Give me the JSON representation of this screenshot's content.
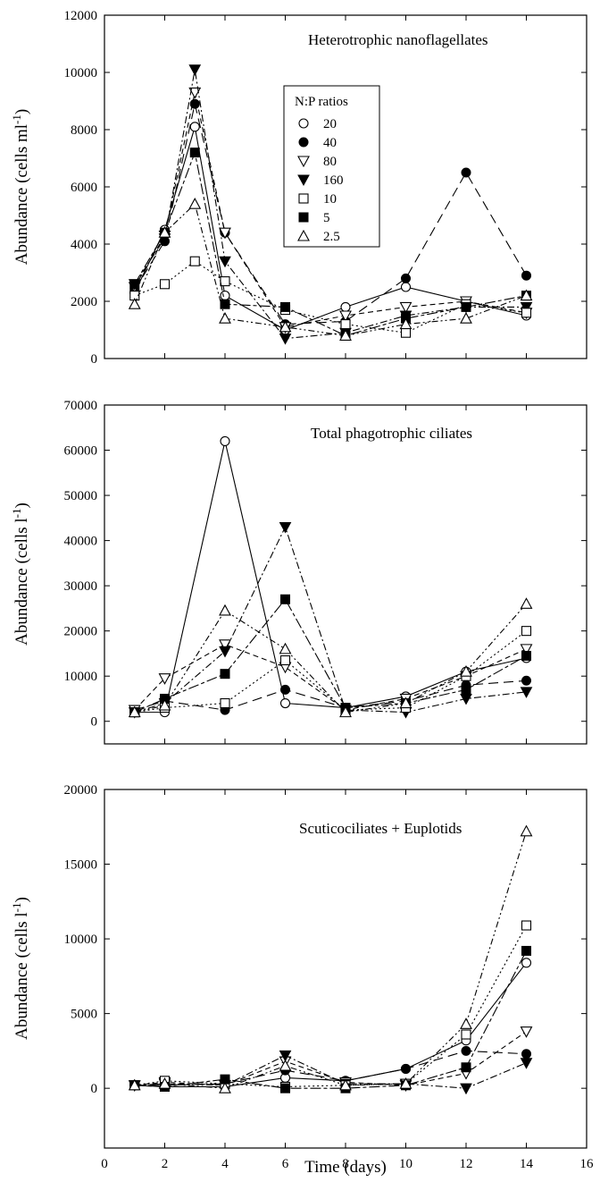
{
  "legend_title": "N:P ratios",
  "shared_xlabel": "Time (days)",
  "chart_data": [
    {
      "type": "line",
      "title": "Heterotrophic nanoflagellates",
      "ylabel_main": "Abundance (cells ml",
      "ylabel_sup": "-1",
      "ylabel_close": ")",
      "ylim": [
        0,
        12000
      ],
      "yticks": [
        "0",
        "2000",
        "4000",
        "6000",
        "8000",
        "10000",
        "12000"
      ],
      "xlim": [
        0,
        16
      ],
      "xticks": [
        "0",
        "2",
        "4",
        "6",
        "8",
        "10",
        "12",
        "14",
        "16"
      ],
      "show_xtick_labels": false,
      "x": [
        1,
        2,
        3,
        4,
        6,
        8,
        10,
        12,
        14
      ],
      "series": [
        {
          "name": "20",
          "marker": "open-circle",
          "dash": "solid",
          "values": [
            2300,
            4500,
            8100,
            2200,
            1000,
            1800,
            2500,
            2000,
            1500
          ]
        },
        {
          "name": "40",
          "marker": "filled-circle",
          "dash": "long-dash",
          "values": [
            2400,
            4100,
            8900,
            4400,
            1200,
            1300,
            2800,
            6500,
            2900
          ]
        },
        {
          "name": "80",
          "marker": "open-down-triangle",
          "dash": "dash",
          "values": [
            2500,
            4300,
            9300,
            4400,
            1100,
            1500,
            1800,
            2000,
            1600
          ]
        },
        {
          "name": "160",
          "marker": "filled-down-triangle",
          "dash": "dash-dot",
          "values": [
            2600,
            4200,
            10100,
            3400,
            700,
            900,
            1500,
            1800,
            1800
          ]
        },
        {
          "name": "10",
          "marker": "open-square",
          "dash": "dot",
          "values": [
            2200,
            2600,
            3400,
            2700,
            1700,
            1200,
            900,
            1900,
            1600
          ]
        },
        {
          "name": "5",
          "marker": "filled-square",
          "dash": "long-dash-short",
          "values": [
            2600,
            4400,
            7200,
            1900,
            1800,
            800,
            1400,
            1800,
            2200
          ]
        },
        {
          "name": "2.5",
          "marker": "open-up-triangle",
          "dash": "dash-dot-dot",
          "values": [
            1900,
            4400,
            5400,
            1400,
            1100,
            800,
            1200,
            1400,
            2200
          ]
        }
      ]
    },
    {
      "type": "line",
      "title": "Total phagotrophic ciliates",
      "ylabel_main": "Abundance (cells l",
      "ylabel_sup": "-1",
      "ylabel_close": ")",
      "ylim": [
        -5000,
        70000
      ],
      "yticks": [
        "0",
        "10000",
        "20000",
        "30000",
        "40000",
        "50000",
        "60000",
        "70000"
      ],
      "xlim": [
        0,
        16
      ],
      "xticks": [
        "0",
        "2",
        "4",
        "6",
        "8",
        "10",
        "12",
        "14",
        "16"
      ],
      "show_xtick_labels": false,
      "x": [
        1,
        2,
        4,
        6,
        8,
        10,
        12,
        14
      ],
      "series": [
        {
          "name": "20",
          "marker": "open-circle",
          "dash": "solid",
          "values": [
            2000,
            2000,
            62000,
            4000,
            3000,
            5500,
            11000,
            14000
          ]
        },
        {
          "name": "40",
          "marker": "filled-circle",
          "dash": "long-dash",
          "values": [
            2500,
            4500,
            2500,
            7000,
            3000,
            4500,
            8000,
            9000
          ]
        },
        {
          "name": "80",
          "marker": "open-down-triangle",
          "dash": "dash",
          "values": [
            2500,
            9500,
            17000,
            12000,
            2500,
            5000,
            10000,
            16000
          ]
        },
        {
          "name": "160",
          "marker": "filled-down-triangle",
          "dash": "dash-dot",
          "values": [
            2000,
            4000,
            15500,
            43000,
            2500,
            2000,
            5000,
            6500
          ]
        },
        {
          "name": "10",
          "marker": "open-square",
          "dash": "dot",
          "values": [
            2000,
            3000,
            4000,
            13500,
            2500,
            3000,
            10000,
            20000
          ]
        },
        {
          "name": "5",
          "marker": "filled-square",
          "dash": "long-dash-short",
          "values": [
            2000,
            5000,
            10500,
            27000,
            3000,
            4000,
            7000,
            14500
          ]
        },
        {
          "name": "2.5",
          "marker": "open-up-triangle",
          "dash": "dash-dot-dot",
          "values": [
            2000,
            3500,
            24500,
            16000,
            2000,
            4000,
            11000,
            26000
          ]
        }
      ]
    },
    {
      "type": "line",
      "title": "Scuticociliates + Euplotids",
      "ylabel_main": "Abundance (cells l",
      "ylabel_sup": "-1",
      "ylabel_close": ")",
      "ylim": [
        -4000,
        20000
      ],
      "yticks": [
        "0",
        "5000",
        "10000",
        "15000",
        "20000"
      ],
      "xlim": [
        0,
        16
      ],
      "xticks": [
        "0",
        "2",
        "4",
        "6",
        "8",
        "10",
        "12",
        "14",
        "16"
      ],
      "show_xtick_labels": true,
      "x": [
        1,
        2,
        4,
        6,
        8,
        10,
        12,
        14
      ],
      "series": [
        {
          "name": "20",
          "marker": "open-circle",
          "dash": "solid",
          "values": [
            200,
            100,
            100,
            700,
            500,
            1300,
            3200,
            8400
          ]
        },
        {
          "name": "40",
          "marker": "filled-circle",
          "dash": "long-dash",
          "values": [
            200,
            200,
            300,
            1200,
            500,
            1300,
            2500,
            2300
          ]
        },
        {
          "name": "80",
          "marker": "open-down-triangle",
          "dash": "dash",
          "values": [
            200,
            400,
            200,
            1800,
            400,
            200,
            1000,
            3800
          ]
        },
        {
          "name": "160",
          "marker": "filled-down-triangle",
          "dash": "dash-dot",
          "values": [
            200,
            300,
            200,
            2200,
            300,
            300,
            0,
            1700
          ]
        },
        {
          "name": "10",
          "marker": "open-square",
          "dash": "dot",
          "values": [
            200,
            500,
            300,
            100,
            200,
            300,
            3600,
            10900
          ]
        },
        {
          "name": "5",
          "marker": "filled-square",
          "dash": "long-dash-short",
          "values": [
            200,
            100,
            600,
            0,
            0,
            200,
            1400,
            9200
          ]
        },
        {
          "name": "2.5",
          "marker": "open-up-triangle",
          "dash": "dash-dot-dot",
          "values": [
            200,
            300,
            0,
            1500,
            200,
            300,
            4300,
            17200
          ]
        }
      ]
    }
  ]
}
